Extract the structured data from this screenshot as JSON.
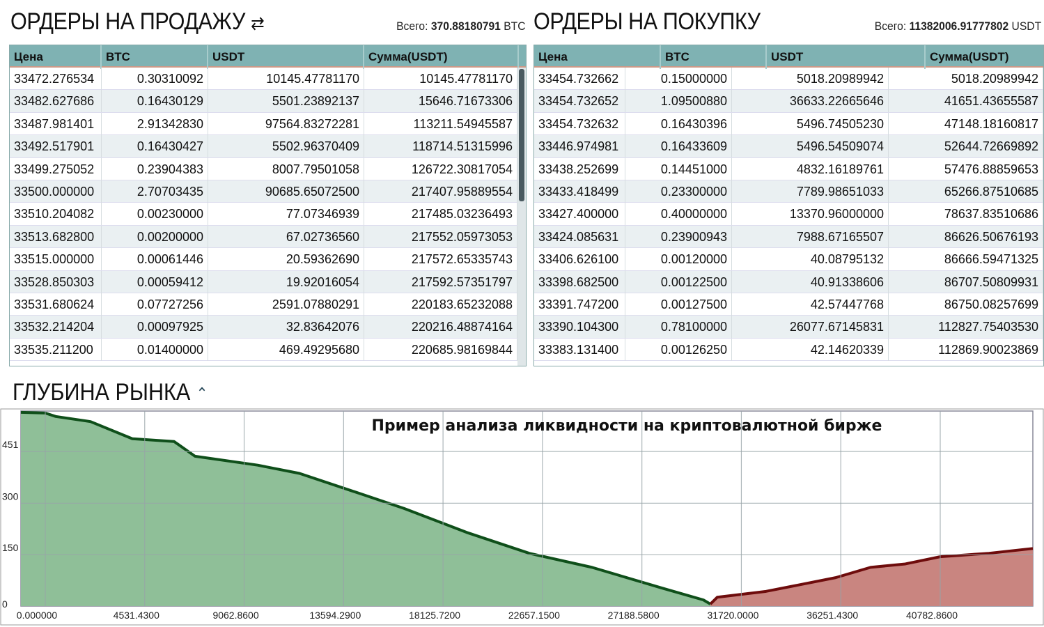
{
  "sell": {
    "title": "ОРДЕРЫ НА ПРОДАЖУ",
    "swap_icon": "⇄",
    "total_label": "Всего:",
    "total_value": "370.88180791",
    "total_unit": "BTC",
    "columns": [
      "Цена",
      "BTC",
      "USDT",
      "Сумма(USDT)"
    ],
    "rows": [
      [
        "33472.276534",
        "0.30310092",
        "10145.47781170",
        "10145.47781170"
      ],
      [
        "33482.627686",
        "0.16430129",
        "5501.23892137",
        "15646.71673306"
      ],
      [
        "33487.981401",
        "2.91342830",
        "97564.83272281",
        "113211.54945587"
      ],
      [
        "33492.517901",
        "0.16430427",
        "5502.96370409",
        "118714.51315996"
      ],
      [
        "33499.275052",
        "0.23904383",
        "8007.79501058",
        "126722.30817054"
      ],
      [
        "33500.000000",
        "2.70703435",
        "90685.65072500",
        "217407.95889554"
      ],
      [
        "33510.204082",
        "0.00230000",
        "77.07346939",
        "217485.03236493"
      ],
      [
        "33513.682800",
        "0.00200000",
        "67.02736560",
        "217552.05973053"
      ],
      [
        "33515.000000",
        "0.00061446",
        "20.59362690",
        "217572.65335743"
      ],
      [
        "33528.850303",
        "0.00059412",
        "19.92016054",
        "217592.57351797"
      ],
      [
        "33531.680624",
        "0.07727256",
        "2591.07880291",
        "220183.65232088"
      ],
      [
        "33532.214204",
        "0.00097925",
        "32.83642076",
        "220216.48874164"
      ],
      [
        "33535.211200",
        "0.01400000",
        "469.49295680",
        "220685.98169844"
      ]
    ]
  },
  "buy": {
    "title": "ОРДЕРЫ НА ПОКУПКУ",
    "total_label": "Всего:",
    "total_value": "11382006.91777802",
    "total_unit": "USDT",
    "columns": [
      "Цена",
      "BTC",
      "USDT",
      "Сумма(USDT)"
    ],
    "rows": [
      [
        "33454.732662",
        "0.15000000",
        "5018.20989942",
        "5018.20989942"
      ],
      [
        "33454.732652",
        "1.09500880",
        "36633.22665646",
        "41651.43655587"
      ],
      [
        "33454.732632",
        "0.16430396",
        "5496.74505230",
        "47148.18160817"
      ],
      [
        "33446.974981",
        "0.16433609",
        "5496.54509074",
        "52644.72669892"
      ],
      [
        "33438.252699",
        "0.14451000",
        "4832.16189761",
        "57476.88859653"
      ],
      [
        "33433.418499",
        "0.23300000",
        "7789.98651033",
        "65266.87510685"
      ],
      [
        "33427.400000",
        "0.40000000",
        "13370.96000000",
        "78637.83510686"
      ],
      [
        "33424.085631",
        "0.23900943",
        "7988.67165507",
        "86626.50676193"
      ],
      [
        "33406.626100",
        "0.00120000",
        "40.08795132",
        "86666.59471325"
      ],
      [
        "33398.682500",
        "0.00122500",
        "40.91338606",
        "86707.50809931"
      ],
      [
        "33391.747200",
        "0.00127500",
        "42.57447768",
        "86750.08257699"
      ],
      [
        "33390.104300",
        "0.78100000",
        "26077.67145831",
        "112827.75403530"
      ],
      [
        "33383.131400",
        "0.00126250",
        "42.14620339",
        "112869.90023869"
      ]
    ]
  },
  "depth": {
    "title": "ГЛУБИНА РЫНКА",
    "collapse_icon": "chevron-up"
  },
  "chart_data": {
    "type": "area",
    "title": "Пример анализа ликвидности на криптовалютной бирже",
    "xlabel": "",
    "ylabel": "",
    "x_ticks": [
      "0.000000",
      "4531.4300",
      "9062.8600",
      "13594.2900",
      "18125.7200",
      "22657.1500",
      "27188.5800",
      "31720.0000",
      "36251.4300",
      "40782.8600"
    ],
    "y_ticks": [
      "0",
      "150",
      "300",
      "451"
    ],
    "xlim": [
      -1111,
      45200
    ],
    "ylim": [
      0,
      570
    ],
    "grid": true,
    "colors": {
      "bids_fill": "#8fbf98",
      "bids_line": "#0f4f1a",
      "asks_fill": "#c98580",
      "asks_line": "#6e0c0c"
    },
    "series": [
      {
        "name": "bids",
        "x": [
          -1111,
          0,
          476,
          2063,
          3967,
          5871,
          6823,
          9680,
          11584,
          14440,
          16344,
          19200,
          22056,
          24913,
          28086,
          29990,
          30308
        ],
        "y": [
          565,
          563,
          553,
          538,
          488,
          480,
          437,
          411,
          387,
          326,
          285,
          215,
          154,
          113,
          53,
          18,
          6
        ]
      },
      {
        "name": "asks",
        "x": [
          30308,
          30625,
          32847,
          36020,
          37607,
          39194,
          40781,
          43002,
          45002
        ],
        "y": [
          6,
          26,
          43,
          83,
          113,
          123,
          144,
          154,
          168
        ]
      }
    ]
  }
}
